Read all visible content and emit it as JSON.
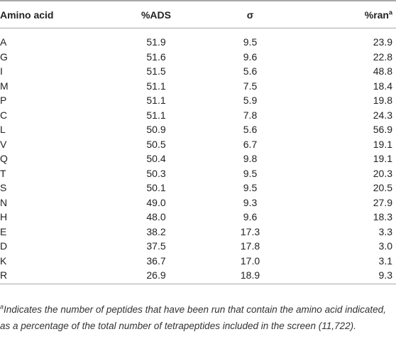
{
  "table": {
    "header": [
      "Amino acid",
      "%ADS",
      "σ",
      "%ran"
    ],
    "header_note_mark": "a",
    "rows": [
      [
        "A",
        "51.9",
        "9.5",
        "23.9"
      ],
      [
        "G",
        "51.6",
        "9.6",
        "22.8"
      ],
      [
        "I",
        "51.5",
        "5.6",
        "48.8"
      ],
      [
        "M",
        "51.1",
        "7.5",
        "18.4"
      ],
      [
        "P",
        "51.1",
        "5.9",
        "19.8"
      ],
      [
        "C",
        "51.1",
        "7.8",
        "24.3"
      ],
      [
        "L",
        "50.9",
        "5.6",
        "56.9"
      ],
      [
        "V",
        "50.5",
        "6.7",
        "19.1"
      ],
      [
        "Q",
        "50.4",
        "9.8",
        "19.1"
      ],
      [
        "T",
        "50.3",
        "9.5",
        "20.3"
      ],
      [
        "S",
        "50.1",
        "9.5",
        "20.5"
      ],
      [
        "N",
        "49.0",
        "9.3",
        "27.9"
      ],
      [
        "H",
        "48.0",
        "9.6",
        "18.3"
      ],
      [
        "E",
        "38.2",
        "17.3",
        "3.3"
      ],
      [
        "D",
        "37.5",
        "17.8",
        "3.0"
      ],
      [
        "K",
        "36.7",
        "17.0",
        "3.1"
      ],
      [
        "R",
        "26.9",
        "18.9",
        "9.3"
      ]
    ]
  },
  "footnote": {
    "mark": "a",
    "text": "Indicates the number of peptides that have been run that contain the amino acid indicated, as a percentage of the total number of tetrapeptides included in the screen (11,722)."
  }
}
